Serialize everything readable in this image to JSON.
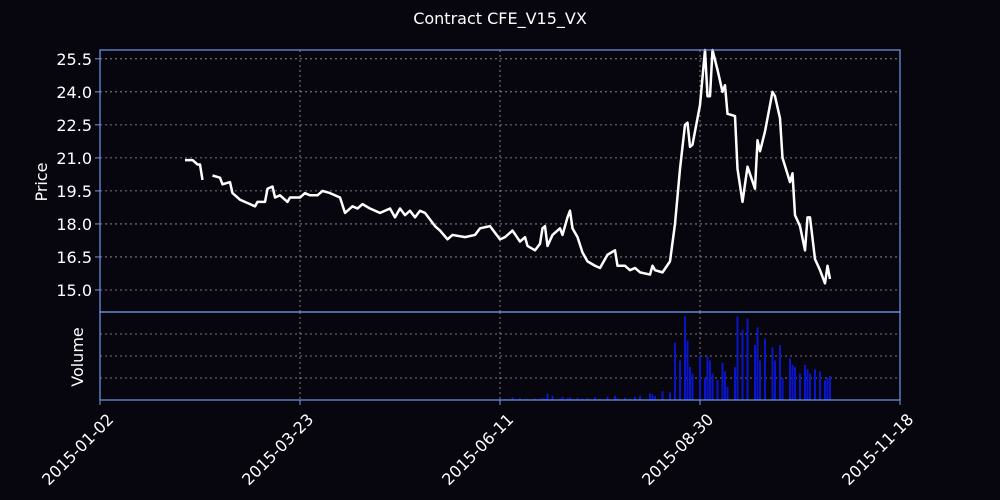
{
  "chart_data": [
    {
      "type": "line",
      "title": "Contract CFE_V15_VX",
      "ylabel": "Price",
      "color": "#ffffff",
      "grid": true,
      "x": [
        "2015-02-05",
        "2015-02-08",
        "2015-02-10",
        "2015-02-11",
        "2015-02-12",
        "2015-02-14",
        "2015-02-16",
        "2015-02-19",
        "2015-02-20",
        "2015-02-23",
        "2015-02-24",
        "2015-02-27",
        "2015-03-03",
        "2015-03-05",
        "2015-03-06",
        "2015-03-09",
        "2015-03-10",
        "2015-03-12",
        "2015-03-13",
        "2015-03-15",
        "2015-03-18",
        "2015-03-19",
        "2015-03-23",
        "2015-03-25",
        "2015-03-27",
        "2015-03-30",
        "2015-04-01",
        "2015-04-04",
        "2015-04-08",
        "2015-04-10",
        "2015-04-13",
        "2015-04-15",
        "2015-04-17",
        "2015-04-20",
        "2015-04-24",
        "2015-04-28",
        "2015-04-30",
        "2015-05-02",
        "2015-05-04",
        "2015-05-06",
        "2015-05-08",
        "2015-05-10",
        "2015-05-12",
        "2015-05-14",
        "2015-05-16",
        "2015-05-18",
        "2015-05-21",
        "2015-05-23",
        "2015-05-28",
        "2015-06-01",
        "2015-06-03",
        "2015-06-07",
        "2015-06-11",
        "2015-06-13",
        "2015-06-16",
        "2015-06-19",
        "2015-06-21",
        "2015-06-22",
        "2015-06-25",
        "2015-06-27",
        "2015-06-28",
        "2015-06-29",
        "2015-06-30",
        "2015-07-02",
        "2015-07-05",
        "2015-07-06",
        "2015-07-08",
        "2015-07-09",
        "2015-07-10",
        "2015-07-12",
        "2015-07-14",
        "2015-07-16",
        "2015-07-19",
        "2015-07-21",
        "2015-07-24",
        "2015-07-27",
        "2015-07-28",
        "2015-07-31",
        "2015-08-02",
        "2015-08-04",
        "2015-08-06",
        "2015-08-10",
        "2015-08-11",
        "2015-08-12",
        "2015-08-15",
        "2015-08-18",
        "2015-08-20",
        "2015-08-22",
        "2015-08-24",
        "2015-08-25",
        "2015-08-26",
        "2015-08-27",
        "2015-08-30",
        "2015-09-01",
        "2015-09-02",
        "2015-09-03",
        "2015-09-04",
        "2015-09-06",
        "2015-09-08",
        "2015-09-09",
        "2015-09-10",
        "2015-09-13",
        "2015-09-14",
        "2015-09-16",
        "2015-09-18",
        "2015-09-21",
        "2015-09-22",
        "2015-09-23",
        "2015-09-25",
        "2015-09-28",
        "2015-09-29",
        "2015-10-01",
        "2015-10-02",
        "2015-10-05",
        "2015-10-06",
        "2015-10-07",
        "2015-10-09",
        "2015-10-11",
        "2015-10-12",
        "2015-10-13",
        "2015-10-15",
        "2015-10-17",
        "2015-10-19",
        "2015-10-20",
        "2015-10-21"
      ],
      "values": [
        20.9,
        20.9,
        20.7,
        20.7,
        20.0,
        null,
        20.2,
        20.1,
        19.8,
        19.9,
        19.4,
        19.1,
        18.9,
        18.8,
        19.0,
        19.0,
        19.6,
        19.7,
        19.2,
        19.3,
        19.0,
        19.2,
        19.2,
        19.4,
        19.3,
        19.3,
        19.5,
        19.4,
        19.2,
        18.5,
        18.8,
        18.7,
        18.9,
        18.7,
        18.5,
        18.7,
        18.3,
        18.7,
        18.4,
        18.6,
        18.3,
        18.6,
        18.5,
        18.2,
        17.9,
        17.7,
        17.3,
        17.5,
        17.4,
        17.5,
        17.8,
        17.9,
        17.3,
        17.4,
        17.7,
        17.2,
        17.4,
        17.0,
        16.8,
        17.1,
        17.8,
        17.9,
        17.0,
        17.5,
        17.8,
        17.5,
        18.3,
        18.6,
        17.8,
        17.4,
        16.7,
        16.3,
        16.1,
        16.0,
        16.6,
        16.8,
        16.1,
        16.1,
        15.9,
        16.0,
        15.8,
        15.7,
        16.1,
        15.9,
        15.8,
        16.3,
        18.0,
        20.5,
        22.5,
        22.6,
        21.5,
        21.6,
        23.4,
        25.9,
        23.8,
        23.8,
        25.9,
        25.0,
        24.0,
        24.3,
        23.0,
        22.9,
        20.5,
        19.0,
        20.6,
        19.6,
        21.8,
        21.3,
        22.2,
        24.0,
        23.8,
        22.8,
        21.0,
        19.9,
        20.3,
        18.4,
        17.9,
        16.8,
        18.3,
        18.3,
        16.4,
        15.9,
        15.3,
        16.1,
        15.5
      ],
      "xlim": [
        "2015-01-02",
        "2015-11-18"
      ],
      "xticks": [
        "2015-01-02",
        "2015-03-23",
        "2015-06-11",
        "2015-08-30",
        "2015-11-18"
      ],
      "ylim": [
        14.0,
        25.9
      ],
      "yticks": [
        {
          "value": 15,
          "label": "15.0"
        },
        16.5,
        {
          "value": 18,
          "label": "18.0"
        },
        19.5,
        {
          "value": 21,
          "label": "21.0"
        },
        22.5,
        {
          "value": 24,
          "label": "24.0"
        },
        25.5
      ]
    },
    {
      "type": "bar",
      "ylabel": "Volume",
      "color": "#0a14c8",
      "grid": true,
      "x": [
        "2015-02-05",
        "2015-02-08",
        "2015-02-10",
        "2015-02-11",
        "2015-02-12",
        "2015-02-14",
        "2015-02-16",
        "2015-02-19",
        "2015-02-20",
        "2015-02-23",
        "2015-02-24",
        "2015-02-27",
        "2015-03-03",
        "2015-03-05",
        "2015-03-06",
        "2015-03-09",
        "2015-03-10",
        "2015-03-12",
        "2015-03-13",
        "2015-03-15",
        "2015-03-18",
        "2015-03-19",
        "2015-03-23",
        "2015-03-25",
        "2015-03-27",
        "2015-03-30",
        "2015-04-01",
        "2015-04-04",
        "2015-04-08",
        "2015-04-10",
        "2015-04-13",
        "2015-04-15",
        "2015-04-17",
        "2015-04-20",
        "2015-04-24",
        "2015-04-28",
        "2015-04-30",
        "2015-05-02",
        "2015-05-04",
        "2015-05-06",
        "2015-05-08",
        "2015-05-10",
        "2015-05-12",
        "2015-05-14",
        "2015-05-16",
        "2015-05-18",
        "2015-05-21",
        "2015-05-23",
        "2015-05-28",
        "2015-06-01",
        "2015-06-03",
        "2015-06-07",
        "2015-06-11",
        "2015-06-13",
        "2015-06-16",
        "2015-06-19",
        "2015-06-21",
        "2015-06-22",
        "2015-06-25",
        "2015-06-27",
        "2015-06-28",
        "2015-06-29",
        "2015-06-30",
        "2015-07-02",
        "2015-07-05",
        "2015-07-06",
        "2015-07-08",
        "2015-07-09",
        "2015-07-10",
        "2015-07-12",
        "2015-07-14",
        "2015-07-16",
        "2015-07-19",
        "2015-07-21",
        "2015-07-24",
        "2015-07-27",
        "2015-07-28",
        "2015-07-31",
        "2015-08-02",
        "2015-08-04",
        "2015-08-06",
        "2015-08-10",
        "2015-08-11",
        "2015-08-12",
        "2015-08-15",
        "2015-08-18",
        "2015-08-20",
        "2015-08-22",
        "2015-08-24",
        "2015-08-25",
        "2015-08-26",
        "2015-08-27",
        "2015-08-30",
        "2015-09-01",
        "2015-09-02",
        "2015-09-03",
        "2015-09-04",
        "2015-09-06",
        "2015-09-08",
        "2015-09-09",
        "2015-09-10",
        "2015-09-13",
        "2015-09-14",
        "2015-09-16",
        "2015-09-18",
        "2015-09-21",
        "2015-09-22",
        "2015-09-23",
        "2015-09-25",
        "2015-09-28",
        "2015-09-29",
        "2015-10-01",
        "2015-10-02",
        "2015-10-05",
        "2015-10-06",
        "2015-10-07",
        "2015-10-09",
        "2015-10-11",
        "2015-10-12",
        "2015-10-13",
        "2015-10-15",
        "2015-10-17",
        "2015-10-19",
        "2015-10-20",
        "2015-10-21"
      ],
      "values": [
        null,
        null,
        null,
        null,
        null,
        null,
        null,
        null,
        null,
        null,
        null,
        null,
        null,
        null,
        null,
        null,
        null,
        null,
        null,
        null,
        null,
        null,
        null,
        null,
        null,
        null,
        null,
        null,
        null,
        null,
        null,
        null,
        null,
        null,
        null,
        null,
        null,
        null,
        null,
        null,
        null,
        null,
        null,
        null,
        null,
        null,
        null,
        null,
        null,
        null,
        null,
        null,
        60,
        40,
        120,
        80,
        30,
        50,
        70,
        40,
        90,
        60,
        300,
        200,
        60,
        150,
        80,
        120,
        40,
        100,
        60,
        80,
        120,
        50,
        150,
        200,
        80,
        100,
        60,
        150,
        200,
        300,
        250,
        180,
        400,
        350,
        2600,
        1800,
        3800,
        2700,
        1500,
        1200,
        2000,
        1000,
        2000,
        1800,
        1200,
        900,
        1700,
        1300,
        600,
        1500,
        3800,
        3200,
        3700,
        2500,
        3300,
        1800,
        2800,
        2400,
        1800,
        2500,
        1000,
        1900,
        1600,
        1500,
        1200,
        1600,
        1400,
        1200,
        1400,
        1300,
        900,
        1000,
        1100
      ],
      "xlim": [
        "2015-01-02",
        "2015-11-18"
      ],
      "xticks": [
        "2015-01-02",
        "2015-03-23",
        "2015-06-11",
        "2015-08-30",
        "2015-11-18"
      ],
      "ylim": [
        0,
        4000
      ]
    }
  ]
}
